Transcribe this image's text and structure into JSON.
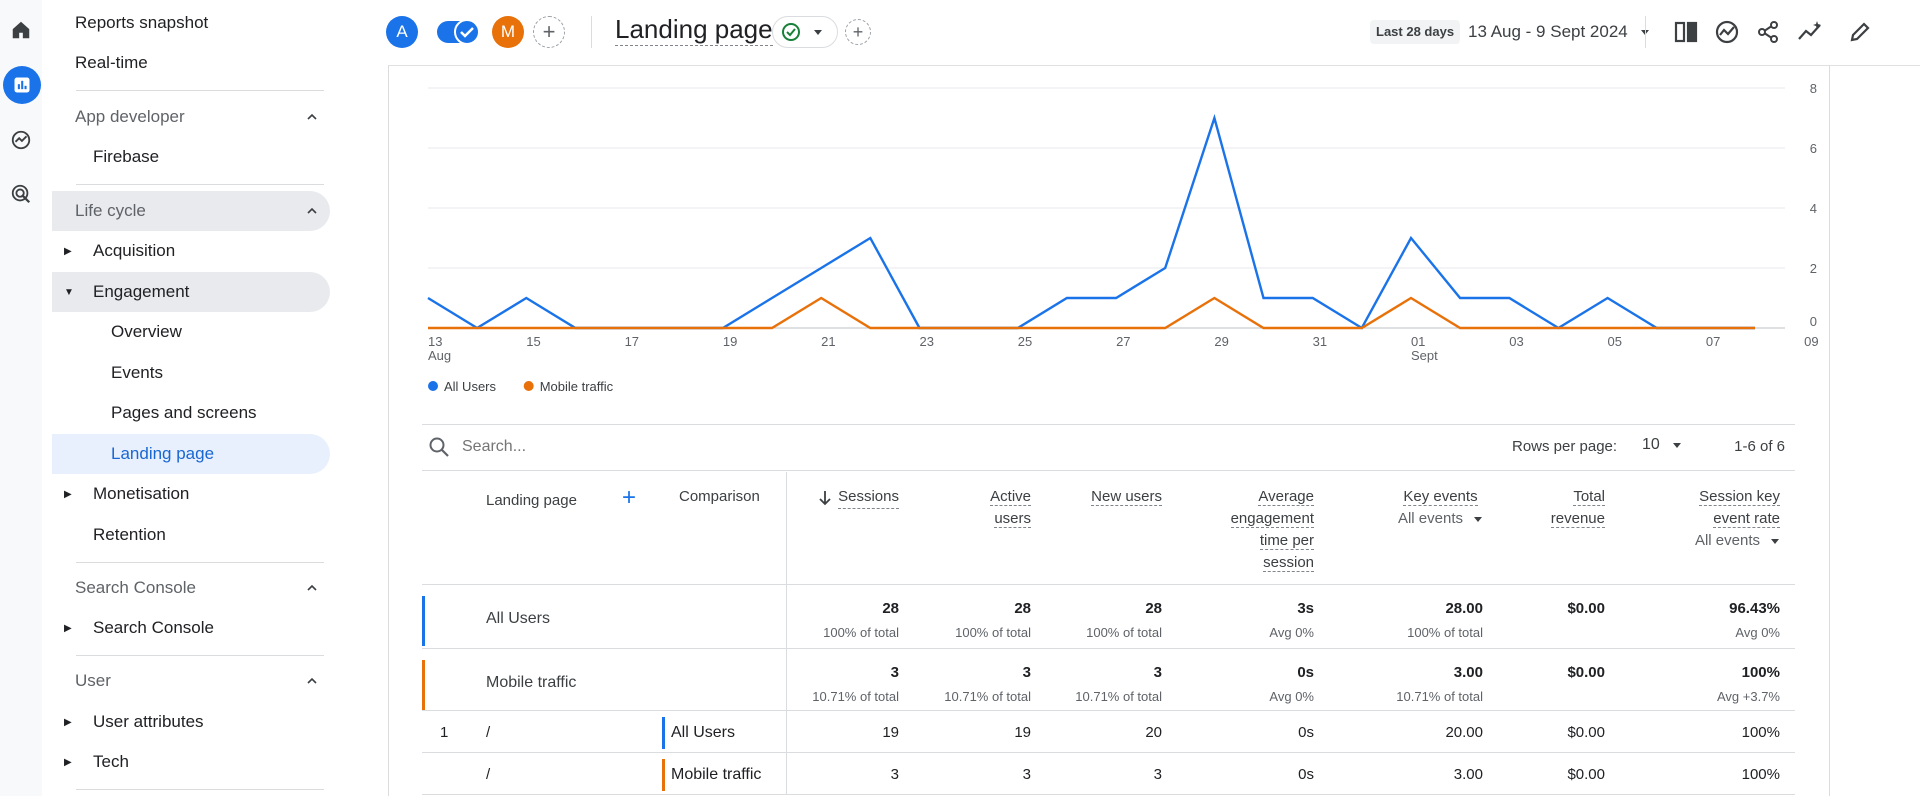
{
  "rail": {
    "icons": [
      "home-icon",
      "reports-icon",
      "explore-icon",
      "advertising-icon"
    ]
  },
  "sidebar": {
    "reports_snapshot": "Reports snapshot",
    "realtime": "Real-time",
    "app_developer": "App developer",
    "firebase": "Firebase",
    "life_cycle": "Life cycle",
    "acquisition": "Acquisition",
    "engagement": "Engagement",
    "overview": "Overview",
    "events": "Events",
    "pages_screens": "Pages and screens",
    "landing_page": "Landing page",
    "monetisation": "Monetisation",
    "retention": "Retention",
    "search_console_head": "Search Console",
    "search_console": "Search Console",
    "user_head": "User",
    "user_attributes": "User attributes",
    "tech": "Tech"
  },
  "topbar": {
    "avatar_a": "A",
    "avatar_m": "M",
    "title": "Landing page",
    "date_label": "Last 28 days",
    "date_range": "13 Aug - 9 Sept 2024"
  },
  "chart_data": {
    "type": "line",
    "x": [
      "13 Aug",
      "14",
      "15",
      "16",
      "17",
      "18",
      "19",
      "20",
      "21",
      "22",
      "23",
      "24",
      "25",
      "26",
      "27",
      "28",
      "29",
      "30",
      "31",
      "01 Sept",
      "02",
      "03",
      "04",
      "05",
      "06",
      "07",
      "08",
      "09"
    ],
    "x_tick_labels": [
      [
        "13",
        "Aug"
      ],
      [
        "15",
        ""
      ],
      [
        "17",
        ""
      ],
      [
        "19",
        ""
      ],
      [
        "21",
        ""
      ],
      [
        "23",
        ""
      ],
      [
        "25",
        ""
      ],
      [
        "27",
        ""
      ],
      [
        "29",
        ""
      ],
      [
        "31",
        ""
      ],
      [
        "01",
        "Sept"
      ],
      [
        "03",
        ""
      ],
      [
        "05",
        ""
      ],
      [
        "07",
        ""
      ],
      [
        "09",
        ""
      ]
    ],
    "series": [
      {
        "name": "All Users",
        "color": "#1a73e8",
        "values": [
          1,
          0,
          1,
          0,
          0,
          0,
          0,
          1,
          2,
          3,
          0,
          0,
          0,
          1,
          1,
          2,
          7,
          1,
          1,
          0,
          3,
          1,
          1,
          0,
          1,
          0,
          0,
          0
        ]
      },
      {
        "name": "Mobile traffic",
        "color": "#e8710a",
        "values": [
          0,
          0,
          0,
          0,
          0,
          0,
          0,
          0,
          1,
          0,
          0,
          0,
          0,
          0,
          0,
          0,
          1,
          0,
          0,
          0,
          1,
          0,
          0,
          0,
          0,
          0,
          0,
          0
        ]
      }
    ],
    "y_ticks": [
      "0",
      "2",
      "4",
      "6",
      "8"
    ],
    "ylim": [
      0,
      8
    ],
    "grid": true,
    "legend": "bottom-left"
  },
  "table": {
    "search_placeholder": "Search...",
    "rows_per_page_label": "Rows per page:",
    "rows_per_page": "10",
    "pagination": "1-6 of 6",
    "col_landing": "Landing page",
    "col_comparison": "Comparison",
    "col_sessions": "Sessions",
    "col_active_1": "Active",
    "col_active_2": "users",
    "col_new": "New users",
    "col_avg_1": "Average",
    "col_avg_2": "engagement",
    "col_avg_3": "time per",
    "col_avg_4": "session",
    "col_key": "Key events",
    "col_key_sel": "All events",
    "col_rev_1": "Total",
    "col_rev_2": "revenue",
    "col_rate_1": "Session key",
    "col_rate_2": "event rate",
    "col_rate_sel": "All events",
    "totals": [
      {
        "label": "All Users",
        "color": "#1a73e8",
        "values": [
          "28",
          "28",
          "28",
          "3s",
          "28.00",
          "$0.00",
          "96.43%"
        ],
        "subs": [
          "100% of total",
          "100% of total",
          "100% of total",
          "Avg 0%",
          "100% of total",
          "",
          "Avg 0%"
        ]
      },
      {
        "label": "Mobile traffic",
        "color": "#e8710a",
        "values": [
          "3",
          "3",
          "3",
          "0s",
          "3.00",
          "$0.00",
          "100%"
        ],
        "subs": [
          "10.71% of total",
          "10.71% of total",
          "10.71% of total",
          "Avg 0%",
          "10.71% of total",
          "",
          "Avg +3.7%"
        ]
      }
    ],
    "rows": [
      {
        "index": "1",
        "page": "/",
        "segment": "All Users",
        "color": "#1a73e8",
        "values": [
          "19",
          "19",
          "20",
          "0s",
          "20.00",
          "$0.00",
          "100%"
        ]
      },
      {
        "index": "",
        "page": "/",
        "segment": "Mobile traffic",
        "color": "#e8710a",
        "values": [
          "3",
          "3",
          "3",
          "0s",
          "3.00",
          "$0.00",
          "100%"
        ]
      }
    ]
  }
}
